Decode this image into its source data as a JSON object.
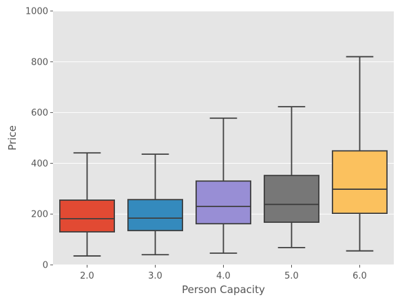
{
  "chart_data": {
    "type": "boxplot",
    "title": "",
    "xlabel": "Person Capacity",
    "ylabel": "Price",
    "ylim": [
      0,
      1000
    ],
    "yticks": [
      0,
      200,
      400,
      600,
      800,
      1000
    ],
    "grid": true,
    "legend": "none",
    "categories": [
      "2.0",
      "3.0",
      "4.0",
      "5.0",
      "6.0"
    ],
    "boxes": [
      {
        "category": "2.0",
        "whisker_low": 35,
        "q1": 130,
        "median": 182,
        "q3": 255,
        "whisker_high": 441,
        "color": "#E24A33"
      },
      {
        "category": "3.0",
        "whisker_low": 40,
        "q1": 135,
        "median": 184,
        "q3": 257,
        "whisker_high": 436,
        "color": "#348ABD"
      },
      {
        "category": "4.0",
        "whisker_low": 46,
        "q1": 162,
        "median": 230,
        "q3": 330,
        "whisker_high": 578,
        "color": "#988ED5"
      },
      {
        "category": "5.0",
        "whisker_low": 68,
        "q1": 168,
        "median": 238,
        "q3": 352,
        "whisker_high": 623,
        "color": "#777777"
      },
      {
        "category": "6.0",
        "whisker_low": 55,
        "q1": 203,
        "median": 298,
        "q3": 449,
        "whisker_high": 820,
        "color": "#FBC15E"
      }
    ],
    "colors": {
      "panel": "#E5E5E5",
      "grid": "#FFFFFF",
      "line": "#3F3F3F",
      "text": "#555555"
    }
  }
}
